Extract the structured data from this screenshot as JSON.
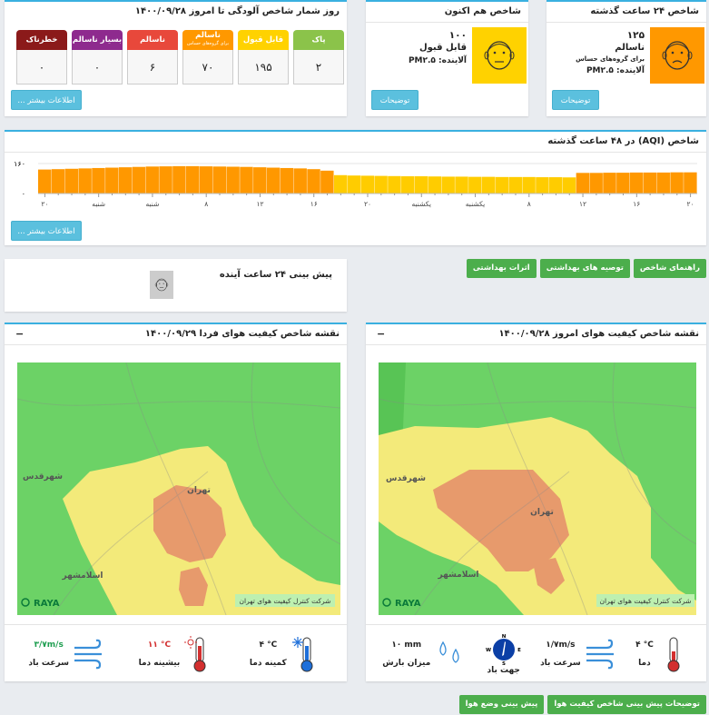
{
  "cards": [
    {
      "title": "شاخص ۲۴ ساعت گذشته",
      "value": "۱۲۵",
      "status": "ناسالم",
      "note": "برای گروه‌های حساس",
      "pollutant": "آلاینده: PM۲.۵",
      "button": "توضیحات",
      "color": "#ff9800"
    },
    {
      "title": "شاخص هم اکنون",
      "value": "۱۰۰",
      "status": "قابل قبول",
      "pollutant": "آلاینده: PM۲.۵",
      "button": "توضیحات",
      "color": "#ffd200"
    }
  ],
  "day_counter": {
    "title": "روز شمار شاخص آلودگی تا امروز ۱۴۰۰/۰۹/۲۸",
    "button": "اطلاعات بیشتر ...",
    "tiles": [
      {
        "label": "پاک",
        "count": "۲",
        "color": "#8bc34a"
      },
      {
        "label": "قابل قبول",
        "count": "۱۹۵",
        "color": "#ffd200"
      },
      {
        "label": "ناسالم",
        "sublabel": "برای گروه‌های حساس",
        "count": "۷۰",
        "color": "#ff9800"
      },
      {
        "label": "ناسالم",
        "count": "۶",
        "color": "#e8483b"
      },
      {
        "label": "بسیار ناسالم",
        "count": "۰",
        "color": "#8e2a8e"
      },
      {
        "label": "خطرناک",
        "count": "۰",
        "color": "#8b1a1a"
      }
    ]
  },
  "chart_data": {
    "type": "bar",
    "title": "شاخص (AQI) در ۴۸ ساعت گذشته",
    "categories": [
      "۲۰",
      null,
      null,
      null,
      "شنبه",
      null,
      null,
      null,
      "شنبه",
      null,
      null,
      null,
      "۸",
      null,
      null,
      null,
      "۱۲",
      null,
      null,
      null,
      "۱۶",
      null,
      null,
      null,
      "۲۰",
      null,
      null,
      null,
      "یکشنبه",
      null,
      null,
      null,
      "یکشنبه",
      null,
      null,
      null,
      "۸",
      null,
      null,
      null,
      "۱۲",
      null,
      null,
      null,
      "۱۶",
      null,
      null,
      null,
      "۲۰"
    ],
    "series": [
      {
        "color": "#ff9800",
        "values": [
          128,
          130,
          132,
          134,
          136,
          138,
          140,
          142,
          144,
          145,
          146,
          146,
          145,
          144,
          143,
          142,
          140,
          138,
          136,
          134,
          130,
          122,
          null,
          null,
          null,
          null,
          null,
          null,
          null,
          null,
          null,
          null,
          null,
          null,
          null,
          null,
          null,
          null,
          null,
          null,
          110,
          110,
          111,
          111,
          112,
          112,
          112,
          113,
          113
        ]
      },
      {
        "color": "#ffcc00",
        "values": [
          null,
          null,
          null,
          null,
          null,
          null,
          null,
          null,
          null,
          null,
          null,
          null,
          null,
          null,
          null,
          null,
          null,
          null,
          null,
          null,
          null,
          null,
          98,
          96,
          95,
          94,
          93,
          92,
          92,
          91,
          90,
          90,
          89,
          89,
          88,
          88,
          88,
          87,
          87,
          86,
          null,
          null,
          null,
          null,
          null,
          null,
          null,
          null,
          null
        ]
      }
    ],
    "ylim": [
      0,
      160
    ],
    "yticks": [
      {
        "value": 0,
        "label": "۰"
      },
      {
        "value": 160,
        "label": "۱۶۰"
      }
    ],
    "grid": true
  },
  "chart_button": "اطلاعات بیشتر ...",
  "guide_buttons": [
    "راهنمای شاخص",
    "توصیه های بهداشتی",
    "اثرات بهداشتی"
  ],
  "forecast": {
    "title": "پیش بینی ۲۴ ساعت آینده"
  },
  "maps": [
    {
      "title": "نقشه شاخص کیفیت هوای امروز ۱۴۰۰/۰۹/۲۸",
      "collapse": "−",
      "company": "شرکت کنترل کیفیت هوای تهران",
      "logo": "RAYA",
      "places": [
        "تهران",
        "شهرقدس",
        "اسلامشهر"
      ],
      "weather": [
        {
          "value": "۴ °C",
          "label": "دما",
          "icon": "thermometer",
          "color": "#222222"
        },
        {
          "value": "۱/۷m/s",
          "label": "سرعت باد",
          "icon": "wind",
          "color": "#222222"
        },
        {
          "label": "جهت باد",
          "icon": "compass",
          "compass": [
            "N",
            "E",
            "S",
            "W"
          ]
        },
        {
          "value": "۱۰ mm",
          "label": "میزان بارش",
          "icon": "rain",
          "color": "#222222"
        }
      ]
    },
    {
      "title": "نقشه شاخص کیفیت هوای فردا ۱۴۰۰/۰۹/۲۹",
      "collapse": "−",
      "company": "شرکت کنترل کیفیت هوای تهران",
      "logo": "RAYA",
      "places": [
        "تهران",
        "شهرقدس",
        "اسلامشهر"
      ],
      "weather": [
        {
          "value": "۴ °C",
          "label": "کمینه دما",
          "icon": "thermometer-cold",
          "color": "#222222"
        },
        {
          "value": "۱۱ °C",
          "label": "بیشینه دما",
          "icon": "thermometer-hot",
          "color": "#d32f2f"
        },
        {
          "value": "۳/۷m/s",
          "label": "سرعت باد",
          "icon": "wind",
          "color": "#1e9e50"
        }
      ]
    }
  ],
  "footer_buttons": [
    "توضیحات پیش بینی شاخص کیفیت هوا",
    "پیش بینی وضع هوا"
  ]
}
